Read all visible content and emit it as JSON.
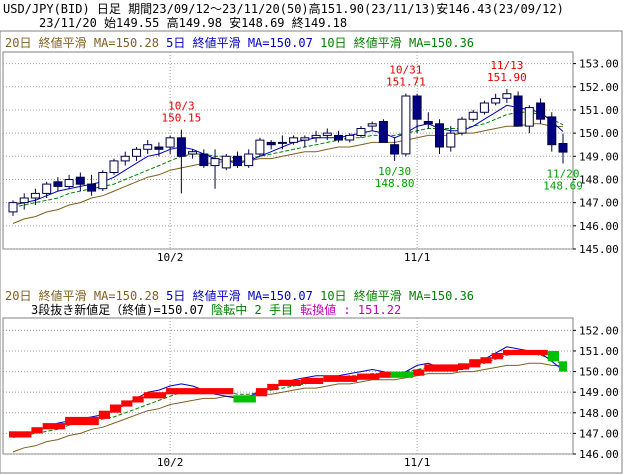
{
  "header": {
    "line1": "USD/JPY(BID) 日足 期間23/09/12～23/11/20(50)高151.90(23/11/13)安146.43(23/09/12)",
    "line2": "23/11/20     始149.55 高149.98 安148.69 終149.18"
  },
  "top_panel": {
    "legend": {
      "ma20": "20日 終値平滑 MA=150.28",
      "ma5": "5日 終値平滑 MA=150.07",
      "ma10": "10日 終値平滑 MA=150.36"
    },
    "y_ticks": [
      "153.00",
      "152.00",
      "151.00",
      "150.00",
      "149.00",
      "148.00",
      "147.00",
      "146.00",
      "145.00"
    ],
    "x_ticks": [
      "10/2",
      "11/1"
    ],
    "annotations": [
      {
        "date": "10/3",
        "value": "150.15",
        "color": "#e00000"
      },
      {
        "date": "10/31",
        "value": "151.71",
        "color": "#e00000"
      },
      {
        "date": "11/13",
        "value": "151.90",
        "color": "#e00000"
      },
      {
        "date": "10/30",
        "value": "148.80",
        "color": "#00a000"
      },
      {
        "date": "11/20",
        "value": "148.69",
        "color": "#00a000"
      }
    ]
  },
  "bottom_panel": {
    "legend": {
      "ma20": "20日 終値平滑 MA=150.28",
      "ma5": "5日 終値平滑 MA=150.07",
      "ma10": "10日 終値平滑 MA=150.36"
    },
    "status": {
      "part1": "3段抜き新値足（終値)=150.07",
      "part2": "陰転中",
      "part3": "2 手目",
      "part4": "転換値 : 151.22"
    },
    "y_ticks": [
      "152.00",
      "151.00",
      "150.00",
      "149.00",
      "148.00",
      "147.00",
      "146.00"
    ],
    "x_ticks": [
      "10/2",
      "11/1"
    ]
  },
  "colors": {
    "up": "#ff0000",
    "down": "#00c000",
    "ma20": "#806020",
    "ma5": "#0000c0",
    "ma10": "#008000",
    "bull_candle": "#ffffff",
    "bear_candle": "#000080",
    "grid": "#a0a0a0"
  },
  "chart_data": [
    {
      "type": "candlestick",
      "series": [
        {
          "name": "candles (date, open, high, low, close)",
          "values": [
            [
              "09/12",
              146.6,
              147.1,
              146.43,
              147.0
            ],
            [
              "09/13",
              147.0,
              147.4,
              146.7,
              147.2
            ],
            [
              "09/14",
              147.2,
              147.6,
              146.9,
              147.4
            ],
            [
              "09/15",
              147.4,
              147.9,
              147.2,
              147.8
            ],
            [
              "09/18",
              147.9,
              148.1,
              147.5,
              147.7
            ],
            [
              "09/19",
              147.7,
              148.2,
              147.6,
              148.0
            ],
            [
              "09/20",
              148.1,
              148.3,
              147.5,
              147.8
            ],
            [
              "09/21",
              147.8,
              148.2,
              147.3,
              147.5
            ],
            [
              "09/22",
              147.6,
              148.4,
              147.5,
              148.3
            ],
            [
              "09/25",
              148.3,
              148.9,
              148.2,
              148.8
            ],
            [
              "09/26",
              148.8,
              149.2,
              148.6,
              149.0
            ],
            [
              "09/27",
              149.0,
              149.4,
              148.8,
              149.3
            ],
            [
              "09/28",
              149.3,
              149.7,
              149.1,
              149.5
            ],
            [
              "09/29",
              149.4,
              149.6,
              149.0,
              149.3
            ],
            [
              "10/2",
              149.4,
              149.9,
              149.1,
              149.8
            ],
            [
              "10/3",
              149.8,
              150.15,
              147.4,
              149.0
            ],
            [
              "10/4",
              149.1,
              149.3,
              148.9,
              149.2
            ],
            [
              "10/5",
              149.1,
              149.3,
              148.5,
              148.6
            ],
            [
              "10/6",
              148.6,
              149.3,
              147.6,
              148.9
            ],
            [
              "10/9",
              148.5,
              149.1,
              148.4,
              149.0
            ],
            [
              "10/10",
              149.0,
              149.2,
              148.5,
              148.6
            ],
            [
              "10/11",
              148.6,
              149.3,
              148.5,
              149.1
            ],
            [
              "10/12",
              149.1,
              149.8,
              149.0,
              149.7
            ],
            [
              "10/13",
              149.6,
              149.7,
              149.3,
              149.5
            ],
            [
              "10/16",
              149.6,
              149.9,
              149.3,
              149.6
            ],
            [
              "10/17",
              149.6,
              149.9,
              149.5,
              149.8
            ],
            [
              "10/18",
              149.7,
              149.9,
              149.4,
              149.8
            ],
            [
              "10/19",
              149.8,
              150.1,
              149.6,
              149.9
            ],
            [
              "10/20",
              149.9,
              150.2,
              149.7,
              150.0
            ],
            [
              "10/23",
              149.9,
              150.1,
              149.6,
              149.7
            ],
            [
              "10/24",
              149.7,
              150.0,
              149.6,
              149.9
            ],
            [
              "10/25",
              149.9,
              150.3,
              149.8,
              150.2
            ],
            [
              "10/26",
              150.3,
              150.5,
              150.1,
              150.4
            ],
            [
              "10/27",
              150.5,
              150.6,
              149.8,
              149.6
            ],
            [
              "10/30",
              149.5,
              149.8,
              148.8,
              149.1
            ],
            [
              "10/31",
              149.1,
              151.71,
              149.0,
              151.6
            ],
            [
              "11/1",
              151.6,
              151.7,
              150.0,
              150.6
            ],
            [
              "11/2",
              150.5,
              150.9,
              150.2,
              150.4
            ],
            [
              "11/3",
              150.4,
              150.6,
              149.1,
              149.4
            ],
            [
              "11/6",
              149.4,
              150.3,
              149.2,
              150.0
            ],
            [
              "11/7",
              150.0,
              150.7,
              149.9,
              150.6
            ],
            [
              "11/8",
              150.6,
              151.0,
              150.5,
              150.9
            ],
            [
              "11/9",
              150.9,
              151.4,
              150.8,
              151.3
            ],
            [
              "11/10",
              151.3,
              151.7,
              151.2,
              151.5
            ],
            [
              "11/13",
              151.5,
              151.9,
              151.3,
              151.7
            ],
            [
              "11/14",
              151.6,
              151.8,
              150.3,
              150.3
            ],
            [
              "11/15",
              150.3,
              151.2,
              150.0,
              151.1
            ],
            [
              "11/16",
              151.3,
              151.5,
              150.4,
              150.6
            ],
            [
              "11/17",
              150.7,
              150.9,
              149.2,
              149.5
            ],
            [
              "11/20",
              149.55,
              149.98,
              148.69,
              149.18
            ]
          ]
        },
        {
          "name": "5日 終値平滑",
          "values": [
            146.9,
            147.0,
            147.1,
            147.3,
            147.5,
            147.6,
            147.7,
            147.8,
            147.9,
            148.1,
            148.4,
            148.7,
            149.0,
            149.1,
            149.3,
            149.4,
            149.3,
            149.1,
            148.9,
            148.8,
            148.7,
            148.8,
            149.0,
            149.2,
            149.4,
            149.6,
            149.7,
            149.8,
            149.8,
            149.8,
            149.9,
            150.0,
            150.1,
            150.0,
            149.8,
            150.0,
            150.3,
            150.4,
            150.2,
            150.1,
            150.1,
            150.3,
            150.6,
            150.9,
            151.2,
            151.1,
            151.0,
            150.9,
            150.5,
            150.07
          ]
        },
        {
          "name": "10日 終値平滑",
          "values": [
            146.8,
            146.9,
            147.0,
            147.1,
            147.2,
            147.4,
            147.5,
            147.6,
            147.7,
            147.8,
            148.0,
            148.2,
            148.4,
            148.6,
            148.8,
            149.0,
            149.1,
            149.1,
            149.0,
            149.0,
            148.9,
            148.9,
            149.0,
            149.1,
            149.2,
            149.3,
            149.4,
            149.5,
            149.6,
            149.7,
            149.8,
            149.8,
            149.9,
            149.9,
            149.9,
            150.0,
            150.1,
            150.2,
            150.2,
            150.2,
            150.2,
            150.3,
            150.4,
            150.6,
            150.8,
            150.9,
            150.9,
            150.8,
            150.6,
            150.36
          ]
        },
        {
          "name": "20日 終値平滑",
          "values": [
            146.1,
            146.3,
            146.4,
            146.6,
            146.7,
            146.9,
            147.0,
            147.2,
            147.3,
            147.5,
            147.7,
            147.9,
            148.1,
            148.2,
            148.4,
            148.5,
            148.6,
            148.7,
            148.7,
            148.8,
            148.8,
            148.8,
            148.9,
            148.9,
            149.0,
            149.1,
            149.2,
            149.2,
            149.3,
            149.4,
            149.4,
            149.5,
            149.6,
            149.6,
            149.6,
            149.7,
            149.8,
            149.9,
            149.9,
            149.9,
            150.0,
            150.0,
            150.1,
            150.2,
            150.3,
            150.3,
            150.4,
            150.4,
            150.3,
            150.28
          ]
        }
      ],
      "ylim": [
        145.0,
        153.5
      ],
      "grid": true
    },
    {
      "type": "bar",
      "series": [
        {
          "name": "3段抜き新値足 (direction, from, to, date)",
          "values": [
            [
              "up",
              146.8,
              147.1,
              "09/12"
            ],
            [
              "up",
              147.0,
              147.3,
              "09/14"
            ],
            [
              "up",
              147.2,
              147.5,
              "09/15"
            ],
            [
              "up",
              147.4,
              147.8,
              "09/19"
            ],
            [
              "up",
              147.7,
              148.1,
              "09/22"
            ],
            [
              "up",
              148.0,
              148.4,
              "09/25"
            ],
            [
              "up",
              148.3,
              148.6,
              "09/26"
            ],
            [
              "up",
              148.5,
              148.8,
              "09/27"
            ],
            [
              "up",
              148.7,
              149.0,
              "09/28"
            ],
            [
              "up",
              148.9,
              149.2,
              "10/2"
            ],
            [
              "down",
              148.5,
              148.85,
              "10/10"
            ],
            [
              "up",
              148.8,
              149.2,
              "10/12"
            ],
            [
              "up",
              149.1,
              149.4,
              "10/13"
            ],
            [
              "up",
              149.3,
              149.6,
              "10/16"
            ],
            [
              "up",
              149.4,
              149.7,
              "10/18"
            ],
            [
              "up",
              149.5,
              149.8,
              "10/20"
            ],
            [
              "up",
              149.6,
              149.9,
              "10/25"
            ],
            [
              "up",
              149.7,
              150.0,
              "10/27"
            ],
            [
              "down",
              149.7,
              150.0,
              "10/30"
            ],
            [
              "up",
              149.8,
              150.1,
              "11/1"
            ],
            [
              "up",
              150.0,
              150.35,
              "11/2"
            ],
            [
              "up",
              150.1,
              150.4,
              "11/7"
            ],
            [
              "up",
              150.2,
              150.6,
              "11/8"
            ],
            [
              "up",
              150.4,
              150.7,
              "11/9"
            ],
            [
              "up",
              150.6,
              150.9,
              "11/10"
            ],
            [
              "up",
              150.8,
              151.05,
              "11/13"
            ],
            [
              "down",
              150.5,
              151.0,
              "11/17"
            ],
            [
              "down",
              150.0,
              150.5,
              "11/20"
            ]
          ]
        },
        {
          "name": "5日 終値平滑",
          "values": [
            146.9,
            147.0,
            147.1,
            147.3,
            147.5,
            147.6,
            147.7,
            147.8,
            147.9,
            148.1,
            148.4,
            148.7,
            149.0,
            149.1,
            149.3,
            149.4,
            149.3,
            149.1,
            148.9,
            148.8,
            148.7,
            148.8,
            149.0,
            149.2,
            149.4,
            149.6,
            149.7,
            149.8,
            149.8,
            149.8,
            149.9,
            150.0,
            150.1,
            150.0,
            149.8,
            150.0,
            150.3,
            150.4,
            150.2,
            150.1,
            150.1,
            150.3,
            150.6,
            150.9,
            151.2,
            151.1,
            151.0,
            150.9,
            150.5,
            150.07
          ]
        },
        {
          "name": "10日 終値平滑",
          "values": [
            146.8,
            146.9,
            147.0,
            147.1,
            147.2,
            147.4,
            147.5,
            147.6,
            147.7,
            147.8,
            148.0,
            148.2,
            148.4,
            148.6,
            148.8,
            149.0,
            149.1,
            149.1,
            149.0,
            149.0,
            148.9,
            148.9,
            149.0,
            149.1,
            149.2,
            149.3,
            149.4,
            149.5,
            149.6,
            149.7,
            149.8,
            149.8,
            149.9,
            149.9,
            149.9,
            150.0,
            150.1,
            150.2,
            150.2,
            150.2,
            150.2,
            150.3,
            150.4,
            150.6,
            150.8,
            150.9,
            150.9,
            150.8,
            150.6,
            150.36
          ]
        },
        {
          "name": "20日 終値平滑",
          "values": [
            146.1,
            146.3,
            146.4,
            146.6,
            146.7,
            146.9,
            147.0,
            147.2,
            147.3,
            147.5,
            147.7,
            147.9,
            148.1,
            148.2,
            148.4,
            148.5,
            148.6,
            148.7,
            148.7,
            148.8,
            148.8,
            148.8,
            148.9,
            148.9,
            149.0,
            149.1,
            149.2,
            149.2,
            149.3,
            149.4,
            149.4,
            149.5,
            149.6,
            149.6,
            149.6,
            149.7,
            149.8,
            149.9,
            149.9,
            149.9,
            150.0,
            150.0,
            150.1,
            150.2,
            150.3,
            150.3,
            150.4,
            150.4,
            150.3,
            150.28
          ]
        }
      ],
      "ylim": [
        146.0,
        152.6
      ],
      "grid": true
    }
  ]
}
